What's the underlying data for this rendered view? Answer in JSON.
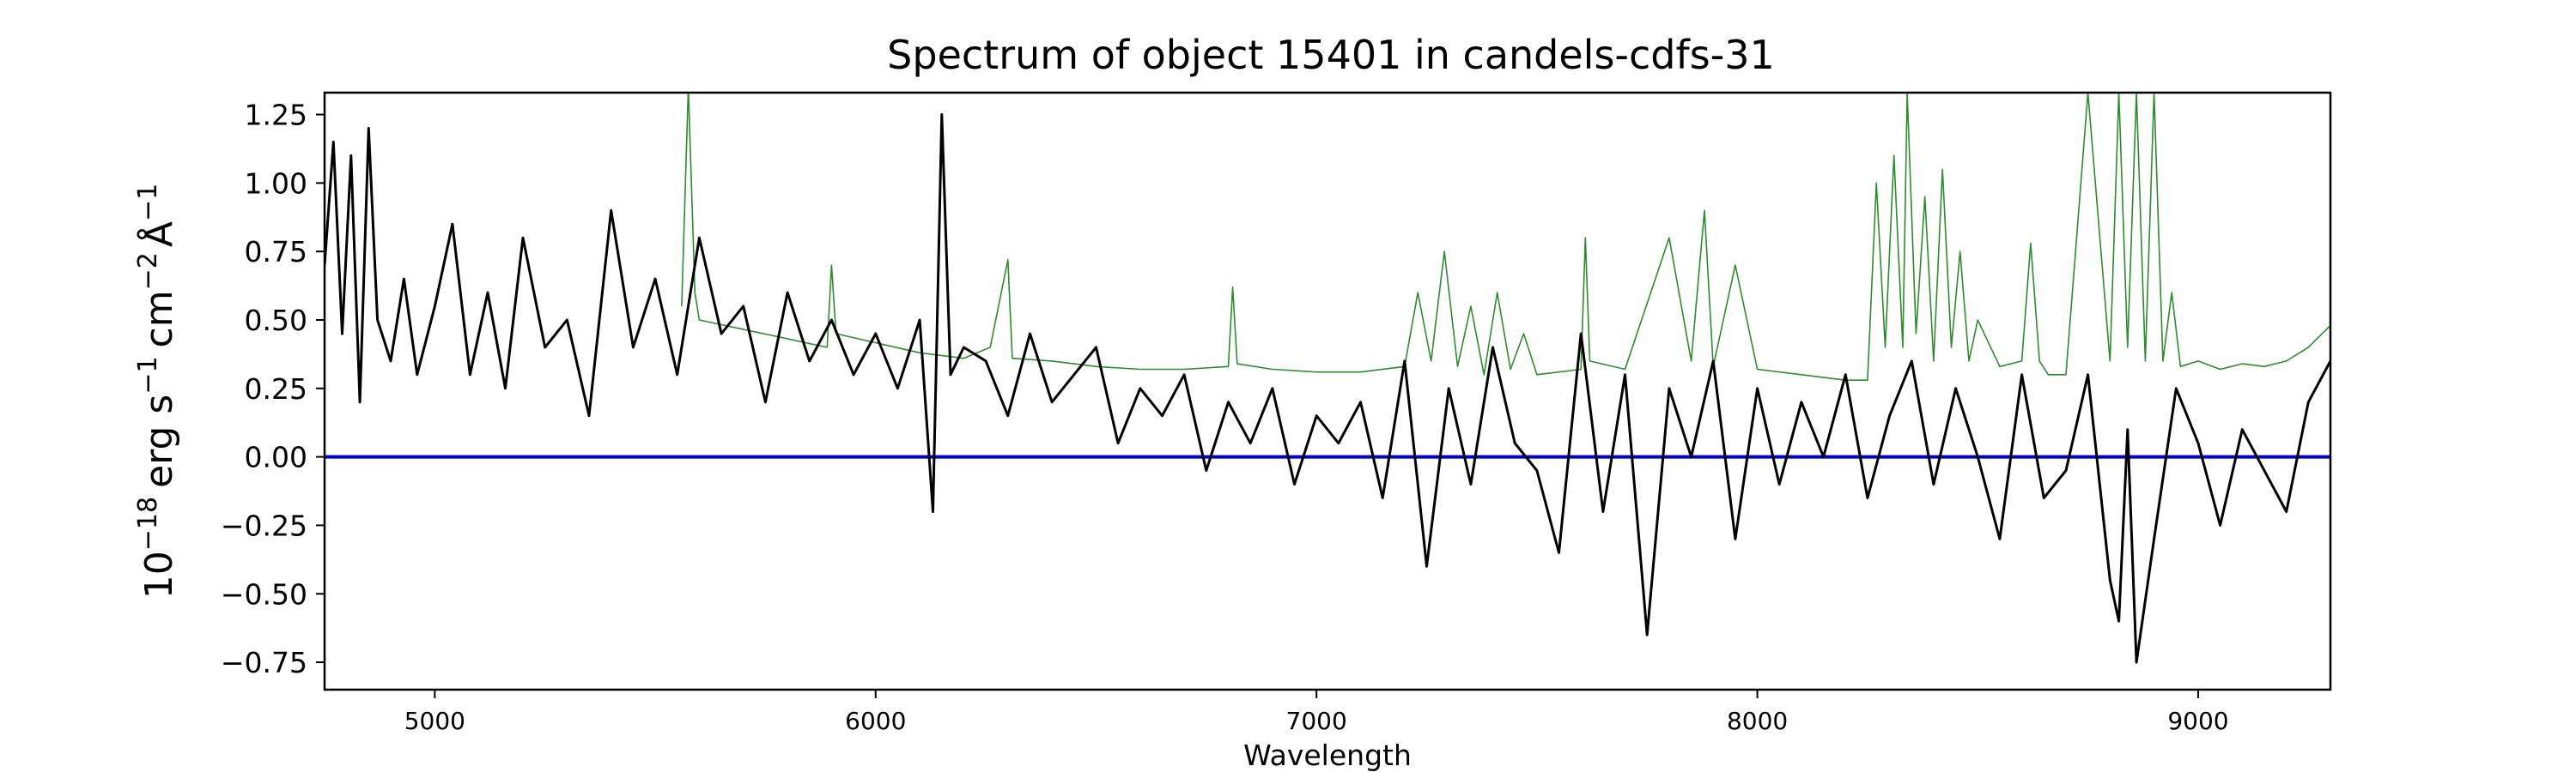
{
  "chart_data": {
    "type": "line",
    "title": "Spectrum of object 15401 in candels-cdfs-31",
    "xlabel": "Wavelength",
    "ylabel_base": "10",
    "ylabel_exp": "−18",
    "ylabel_unit1": "erg s",
    "ylabel_exp1": "−1",
    "ylabel_unit2": "cm",
    "ylabel_exp2": "−2",
    "ylabel_unit3": "Å",
    "ylabel_exp3": "−1",
    "xlim": [
      4750,
      9300
    ],
    "ylim": [
      -0.85,
      1.33
    ],
    "xticks": [
      5000,
      6000,
      7000,
      8000,
      9000
    ],
    "xtick_labels": [
      "5000",
      "6000",
      "7000",
      "8000",
      "9000"
    ],
    "yticks": [
      -0.75,
      -0.5,
      -0.25,
      0.0,
      0.25,
      0.5,
      0.75,
      1.0,
      1.25
    ],
    "ytick_labels": [
      "−0.75",
      "−0.50",
      "−0.25",
      "0.00",
      "0.25",
      "0.50",
      "0.75",
      "1.00",
      "1.25"
    ],
    "grid": false,
    "colors": {
      "flux": "#000000",
      "error": "#2e8b2e",
      "zero": "#0000cc"
    },
    "series": [
      {
        "role": "flux",
        "x": [
          4750,
          4770,
          4790,
          4810,
          4830,
          4850,
          4870,
          4900,
          4930,
          4960,
          5000,
          5040,
          5080,
          5120,
          5160,
          5200,
          5250,
          5300,
          5350,
          5400,
          5450,
          5500,
          5550,
          5600,
          5650,
          5700,
          5750,
          5800,
          5850,
          5900,
          5950,
          6000,
          6050,
          6100,
          6130,
          6150,
          6170,
          6200,
          6250,
          6300,
          6350,
          6400,
          6450,
          6500,
          6550,
          6600,
          6650,
          6700,
          6750,
          6800,
          6850,
          6900,
          6950,
          7000,
          7050,
          7100,
          7150,
          7200,
          7250,
          7300,
          7350,
          7400,
          7450,
          7500,
          7550,
          7600,
          7650,
          7700,
          7750,
          7800,
          7850,
          7900,
          7950,
          8000,
          8050,
          8100,
          8150,
          8200,
          8250,
          8300,
          8350,
          8400,
          8450,
          8500,
          8550,
          8600,
          8650,
          8700,
          8750,
          8800,
          8820,
          8840,
          8860,
          8900,
          8950,
          9000,
          9050,
          9100,
          9150,
          9200,
          9250,
          9300
        ],
        "y": [
          0.7,
          1.15,
          0.45,
          1.1,
          0.2,
          1.2,
          0.5,
          0.35,
          0.65,
          0.3,
          0.55,
          0.85,
          0.3,
          0.6,
          0.25,
          0.8,
          0.4,
          0.5,
          0.15,
          0.9,
          0.4,
          0.65,
          0.3,
          0.8,
          0.45,
          0.55,
          0.2,
          0.6,
          0.35,
          0.5,
          0.3,
          0.45,
          0.25,
          0.5,
          -0.2,
          1.25,
          0.3,
          0.4,
          0.35,
          0.15,
          0.45,
          0.2,
          0.3,
          0.4,
          0.05,
          0.25,
          0.15,
          0.3,
          -0.05,
          0.2,
          0.05,
          0.25,
          -0.1,
          0.15,
          0.05,
          0.2,
          -0.15,
          0.35,
          -0.4,
          0.25,
          -0.1,
          0.4,
          0.05,
          -0.05,
          -0.35,
          0.45,
          -0.2,
          0.3,
          -0.65,
          0.25,
          0.0,
          0.35,
          -0.3,
          0.25,
          -0.1,
          0.2,
          0.0,
          0.3,
          -0.15,
          0.15,
          0.35,
          -0.1,
          0.25,
          0.0,
          -0.3,
          0.3,
          -0.15,
          -0.05,
          0.3,
          -0.45,
          -0.6,
          0.1,
          -0.75,
          -0.3,
          0.25,
          0.05,
          -0.25,
          0.1,
          -0.05,
          -0.2,
          0.2,
          0.35
        ]
      },
      {
        "role": "error",
        "x": [
          5560,
          5575,
          5590,
          5600,
          5890,
          5900,
          5910,
          6100,
          6200,
          6260,
          6300,
          6310,
          6400,
          6500,
          6600,
          6700,
          6800,
          6810,
          6820,
          6900,
          7000,
          7100,
          7200,
          7230,
          7260,
          7290,
          7320,
          7350,
          7380,
          7410,
          7440,
          7470,
          7500,
          7600,
          7610,
          7620,
          7700,
          7800,
          7850,
          7880,
          7900,
          7950,
          8000,
          8100,
          8200,
          8250,
          8270,
          8290,
          8310,
          8330,
          8340,
          8360,
          8380,
          8400,
          8420,
          8440,
          8460,
          8480,
          8500,
          8550,
          8600,
          8620,
          8640,
          8660,
          8700,
          8750,
          8800,
          8820,
          8840,
          8860,
          8880,
          8900,
          8920,
          8940,
          8960,
          9000,
          9050,
          9100,
          9150,
          9200,
          9250,
          9300
        ],
        "y": [
          0.55,
          1.35,
          0.6,
          0.5,
          0.4,
          0.7,
          0.45,
          0.38,
          0.36,
          0.4,
          0.72,
          0.36,
          0.35,
          0.33,
          0.32,
          0.32,
          0.33,
          0.62,
          0.34,
          0.32,
          0.31,
          0.31,
          0.33,
          0.6,
          0.35,
          0.75,
          0.33,
          0.55,
          0.3,
          0.6,
          0.32,
          0.45,
          0.3,
          0.32,
          0.8,
          0.35,
          0.32,
          0.8,
          0.35,
          0.9,
          0.33,
          0.7,
          0.32,
          0.3,
          0.28,
          0.28,
          1.0,
          0.4,
          1.1,
          0.4,
          1.33,
          0.45,
          0.95,
          0.35,
          1.05,
          0.4,
          0.75,
          0.35,
          0.5,
          0.33,
          0.35,
          0.78,
          0.35,
          0.3,
          0.3,
          1.33,
          0.35,
          1.33,
          0.4,
          1.33,
          0.35,
          1.33,
          0.35,
          0.6,
          0.33,
          0.35,
          0.32,
          0.34,
          0.33,
          0.35,
          0.4,
          0.48
        ]
      },
      {
        "role": "zero",
        "x": [
          4750,
          9300
        ],
        "y": [
          0,
          0
        ]
      }
    ]
  }
}
